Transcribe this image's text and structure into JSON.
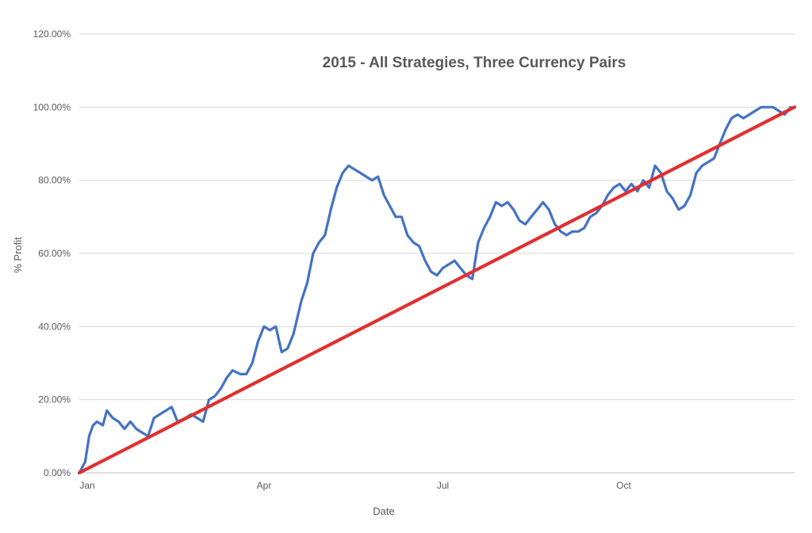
{
  "chart_data": {
    "type": "line",
    "title": "2015 - All Strategies, Three Currency Pairs",
    "xlabel": "Date",
    "ylabel": "% Profit",
    "ylim": [
      0,
      120
    ],
    "xlim": [
      "2015-01-01",
      "2015-12-31"
    ],
    "grid": true,
    "legend": "none",
    "y_ticks": [
      "0.00%",
      "20.00%",
      "40.00%",
      "60.00%",
      "80.00%",
      "100.00%",
      "120.00%"
    ],
    "x_ticks": [
      {
        "label": "Jan",
        "date": "2015-01-01"
      },
      {
        "label": "Apr",
        "date": "2015-04-01"
      },
      {
        "label": "Jul",
        "date": "2015-07-01"
      },
      {
        "label": "Oct",
        "date": "2015-10-01"
      }
    ],
    "series": [
      {
        "color": "#4472C4",
        "x": [
          "2015-01-01",
          "2015-01-04",
          "2015-01-06",
          "2015-01-08",
          "2015-01-10",
          "2015-01-13",
          "2015-01-15",
          "2015-01-18",
          "2015-01-21",
          "2015-01-24",
          "2015-01-27",
          "2015-01-30",
          "2015-02-02",
          "2015-02-05",
          "2015-02-08",
          "2015-02-11",
          "2015-02-14",
          "2015-02-17",
          "2015-02-20",
          "2015-02-24",
          "2015-02-27",
          "2015-03-02",
          "2015-03-05",
          "2015-03-08",
          "2015-03-11",
          "2015-03-14",
          "2015-03-17",
          "2015-03-20",
          "2015-03-24",
          "2015-03-27",
          "2015-03-30",
          "2015-04-02",
          "2015-04-05",
          "2015-04-08",
          "2015-04-11",
          "2015-04-14",
          "2015-04-17",
          "2015-04-20",
          "2015-04-24",
          "2015-04-27",
          "2015-04-30",
          "2015-05-03",
          "2015-05-06",
          "2015-05-09",
          "2015-05-12",
          "2015-05-15",
          "2015-05-18",
          "2015-05-21",
          "2015-05-24",
          "2015-05-27",
          "2015-05-30",
          "2015-06-02",
          "2015-06-05",
          "2015-06-08",
          "2015-06-11",
          "2015-06-14",
          "2015-06-17",
          "2015-06-20",
          "2015-06-23",
          "2015-06-26",
          "2015-06-29",
          "2015-07-02",
          "2015-07-05",
          "2015-07-08",
          "2015-07-11",
          "2015-07-14",
          "2015-07-17",
          "2015-07-20",
          "2015-07-23",
          "2015-07-26",
          "2015-07-29",
          "2015-08-01",
          "2015-08-04",
          "2015-08-07",
          "2015-08-10",
          "2015-08-13",
          "2015-08-16",
          "2015-08-19",
          "2015-08-22",
          "2015-08-25",
          "2015-08-28",
          "2015-08-31",
          "2015-09-03",
          "2015-09-06",
          "2015-09-09",
          "2015-09-12",
          "2015-09-15",
          "2015-09-18",
          "2015-09-21",
          "2015-09-24",
          "2015-09-27",
          "2015-09-30",
          "2015-10-03",
          "2015-10-06",
          "2015-10-09",
          "2015-10-12",
          "2015-10-15",
          "2015-10-18",
          "2015-10-21",
          "2015-10-24",
          "2015-10-27",
          "2015-10-30",
          "2015-11-02",
          "2015-11-05",
          "2015-11-08",
          "2015-11-11",
          "2015-11-14",
          "2015-11-17",
          "2015-11-20",
          "2015-11-23",
          "2015-11-26",
          "2015-11-29",
          "2015-12-02",
          "2015-12-05",
          "2015-12-08",
          "2015-12-11",
          "2015-12-14",
          "2015-12-17",
          "2015-12-20",
          "2015-12-23",
          "2015-12-26",
          "2015-12-29"
        ],
        "values": [
          0,
          3,
          10,
          13,
          14,
          13,
          17,
          15,
          14,
          12,
          14,
          12,
          11,
          10,
          15,
          16,
          17,
          18,
          14,
          15,
          16,
          15,
          14,
          20,
          21,
          23,
          26,
          28,
          27,
          27,
          30,
          36,
          40,
          39,
          40,
          33,
          34,
          38,
          47,
          52,
          60,
          63,
          65,
          72,
          78,
          82,
          84,
          83,
          82,
          81,
          80,
          81,
          76,
          73,
          70,
          70,
          65,
          63,
          62,
          58,
          55,
          54,
          56,
          57,
          58,
          56,
          54,
          53,
          63,
          67,
          70,
          74,
          73,
          74,
          72,
          69,
          68,
          70,
          72,
          74,
          72,
          68,
          66,
          65,
          66,
          66,
          67,
          70,
          71,
          73,
          76,
          78,
          79,
          77,
          79,
          77,
          80,
          78,
          84,
          82,
          77,
          75,
          72,
          73,
          76,
          82,
          84,
          85,
          86,
          90,
          94,
          97,
          98,
          97,
          98,
          99,
          100,
          100,
          100,
          99,
          98,
          100
        ]
      },
      {
        "color": "#E03030",
        "x": [
          "2015-01-01",
          "2015-12-31"
        ],
        "values": [
          0,
          100
        ]
      }
    ]
  }
}
